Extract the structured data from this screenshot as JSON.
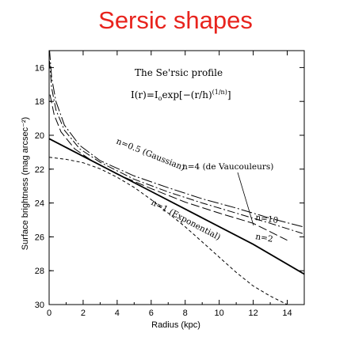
{
  "page_title": "Sersic shapes",
  "chart_data": {
    "type": "line",
    "title": "",
    "xlabel": "Radius (kpc)",
    "ylabel": "Surface brightness (mag arcsec⁻²)",
    "xlim": [
      0,
      15
    ],
    "ylim": [
      30,
      15
    ],
    "y_inverted": true,
    "x_ticks": [
      0,
      2,
      4,
      6,
      8,
      10,
      12,
      14
    ],
    "y_ticks": [
      16,
      18,
      20,
      22,
      24,
      26,
      28,
      30
    ],
    "grid": false,
    "annotations": {
      "profile_title": "The Se'rsic profile",
      "formula_main": "I(r)=I",
      "formula_sub": "o",
      "formula_rest": "exp[−(r/h)",
      "formula_sup": "(1/n)",
      "formula_end": "]",
      "label_gauss": "n=0.5 (Gaussian)",
      "label_exp": "n=1 (Exponential)",
      "label_dev": "n=4 (de Vaucouleurs)",
      "label_n10": "n=10",
      "label_n2": "n=2"
    },
    "series": [
      {
        "name": "n=0.5 (Gaussian)",
        "style": "short-dash",
        "points": [
          [
            0,
            21.3
          ],
          [
            1,
            21.42
          ],
          [
            2,
            21.62
          ],
          [
            3,
            21.98
          ],
          [
            4,
            22.48
          ],
          [
            5,
            23.08
          ],
          [
            6,
            23.8
          ],
          [
            7,
            24.6
          ],
          [
            8,
            25.4
          ],
          [
            9,
            26.3
          ],
          [
            10,
            27.2
          ],
          [
            11,
            28.1
          ],
          [
            12,
            28.9
          ],
          [
            13,
            29.5
          ],
          [
            14,
            30
          ]
        ]
      },
      {
        "name": "n=1 (Exponential)",
        "style": "solid",
        "points": [
          [
            0,
            20.2
          ],
          [
            3,
            21.76
          ],
          [
            6,
            23.32
          ],
          [
            9,
            24.88
          ],
          [
            12,
            26.44
          ],
          [
            15,
            28.2
          ]
        ]
      },
      {
        "name": "n=2",
        "style": "long-dash",
        "points": [
          [
            0.05,
            17.6
          ],
          [
            0.3,
            18.8
          ],
          [
            0.7,
            19.8
          ],
          [
            1.5,
            20.8
          ],
          [
            2.5,
            21.5
          ],
          [
            4,
            22.3
          ],
          [
            6,
            23.15
          ],
          [
            8,
            23.95
          ],
          [
            10,
            24.6
          ],
          [
            12,
            25.2
          ],
          [
            14,
            26.2
          ]
        ]
      },
      {
        "name": "n=4 (de Vaucouleurs)",
        "style": "dash-dot",
        "points": [
          [
            0.02,
            15.6
          ],
          [
            0.15,
            17.2
          ],
          [
            0.4,
            18.5
          ],
          [
            0.9,
            19.7
          ],
          [
            1.8,
            20.8
          ],
          [
            3,
            21.6
          ],
          [
            5,
            22.6
          ],
          [
            7,
            23.35
          ],
          [
            9,
            24
          ],
          [
            11,
            24.6
          ],
          [
            13,
            25.2
          ],
          [
            14.9,
            25.8
          ]
        ]
      },
      {
        "name": "n=10",
        "style": "dash-dot-long",
        "points": [
          [
            0.02,
            14.9
          ],
          [
            0.15,
            16.6
          ],
          [
            0.4,
            18.0
          ],
          [
            0.9,
            19.4
          ],
          [
            1.8,
            20.6
          ],
          [
            3,
            21.5
          ],
          [
            5,
            22.4
          ],
          [
            7,
            23.1
          ],
          [
            9,
            23.75
          ],
          [
            11,
            24.3
          ],
          [
            13,
            24.9
          ],
          [
            14.9,
            25.4
          ]
        ]
      }
    ]
  }
}
